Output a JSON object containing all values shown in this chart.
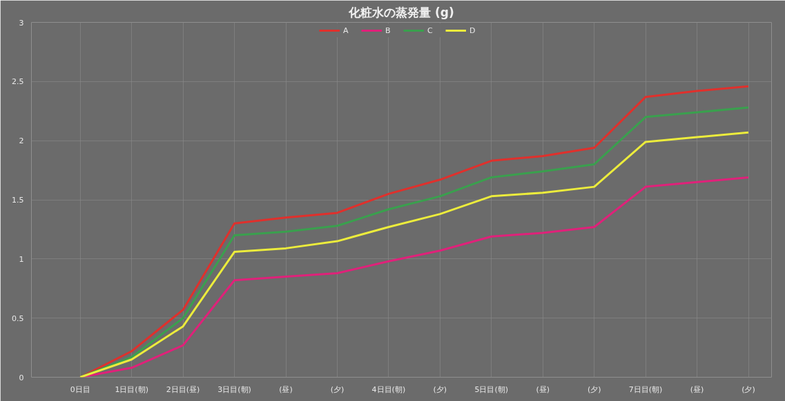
{
  "chart_data": {
    "type": "line",
    "title": "化粧水の蒸発量 (g)",
    "categories": [
      "0日目",
      "1日目(朝)",
      "2日目(昼)",
      "3日目(朝)",
      "(昼)",
      "(夕)",
      "4日目(朝)",
      "(夕)",
      "5日目(朝)",
      "(昼)",
      "(夕)",
      "7日目(朝)",
      "(昼)",
      "(夕)"
    ],
    "series": [
      {
        "name": "A",
        "color": "#e0302c",
        "values": [
          0,
          0.22,
          0.57,
          1.3,
          1.35,
          1.39,
          1.55,
          1.67,
          1.83,
          1.87,
          1.94,
          2.37,
          2.42,
          2.46
        ]
      },
      {
        "name": "B",
        "color": "#e0217a",
        "values": [
          0,
          0.08,
          0.27,
          0.82,
          0.85,
          0.88,
          0.98,
          1.07,
          1.19,
          1.22,
          1.27,
          1.61,
          1.65,
          1.69
        ]
      },
      {
        "name": "C",
        "color": "#3aa04e",
        "values": [
          0,
          0.17,
          0.5,
          1.2,
          1.23,
          1.28,
          1.42,
          1.53,
          1.69,
          1.74,
          1.8,
          2.2,
          2.24,
          2.28
        ]
      },
      {
        "name": "D",
        "color": "#ecec3c",
        "values": [
          0,
          0.15,
          0.43,
          1.06,
          1.09,
          1.15,
          1.27,
          1.38,
          1.53,
          1.56,
          1.61,
          1.99,
          2.03,
          2.07
        ]
      }
    ],
    "ylim": [
      0,
      3
    ],
    "yticks": [
      0,
      0.5,
      1,
      1.5,
      2,
      2.5,
      3
    ],
    "grid": true,
    "legend": "top",
    "marker": "none",
    "line_style": "solid"
  }
}
